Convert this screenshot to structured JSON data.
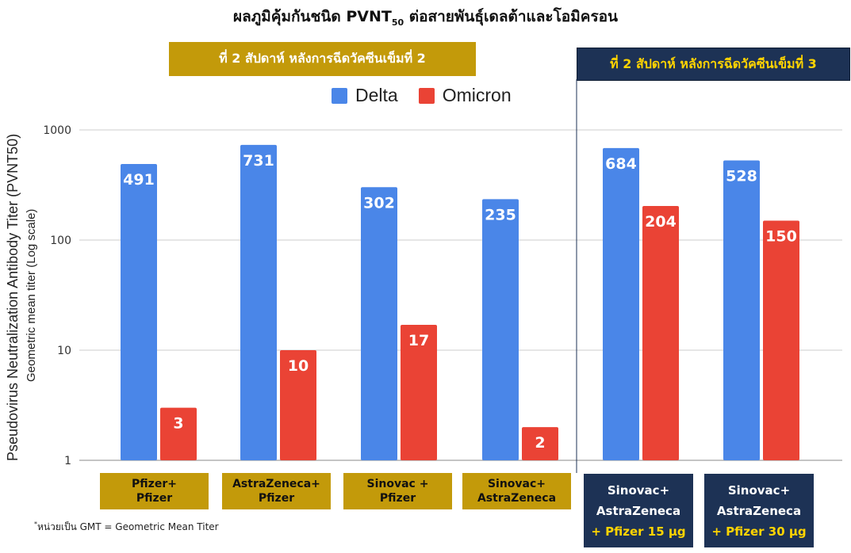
{
  "title": {
    "main": "ผลภูมิคุ้มกันชนิด PVNT",
    "subscript": "50",
    "rest": " ต่อสายพันธุ์เดลต้าและโอมิครอน"
  },
  "banners": {
    "dose2": "ที่ 2 สัปดาห์ หลังการฉีดวัคซีนเข็มที่ 2",
    "dose3": "ที่ 2 สัปดาห์ หลังการฉีดวัคซีนเข็มที่ 3"
  },
  "ylabel_primary": "Pseudovirus Neutralization Antibody Titer (PVNT50)",
  "ylabel_secondary": "Geometric mean titer (Log scale)",
  "footnote": {
    "mark": "*",
    "text": "หน่วยเป็น GMT = Geometric Mean Titer"
  },
  "category_labels": [
    {
      "line1": "Pfizer+",
      "line2": "Pfizer"
    },
    {
      "line1": "AstraZeneca+",
      "line2": "Pfizer"
    },
    {
      "line1": "Sinovac +",
      "line2": "Pfizer"
    },
    {
      "line1": "Sinovac+",
      "line2": "AstraZeneca"
    },
    {
      "line1": "Sinovac+",
      "line2": "AstraZeneca",
      "line3": "+ Pfizer 15 µg"
    },
    {
      "line1": "Sinovac+",
      "line2": "AstraZeneca",
      "line3": "+ Pfizer 30 µg"
    }
  ],
  "chart_data": {
    "type": "bar",
    "title": "ผลภูมิคุ้มกันชนิด PVNT50 ต่อสายพันธุ์เดลต้าและโอมิครอน",
    "categories": [
      "Pfizer+Pfizer",
      "AstraZeneca+Pfizer",
      "Sinovac + Pfizer",
      "Sinovac+AstraZeneca",
      "Sinovac+AstraZeneca + Pfizer 15 µg",
      "Sinovac+AstraZeneca + Pfizer 30 µg"
    ],
    "series": [
      {
        "name": "Delta",
        "values": [
          491,
          731,
          302,
          235,
          684,
          528
        ],
        "color": "#4a86e8"
      },
      {
        "name": "Omicron",
        "values": [
          3,
          10,
          17,
          2,
          204,
          150
        ],
        "color": "#ea4335"
      }
    ],
    "ylabel": "Pseudovirus Neutralization Antibody Titer (PVNT50)",
    "yscale": "log",
    "ylim": [
      1,
      1000
    ],
    "yticks": [
      1,
      10,
      100,
      1000
    ],
    "ytick_labels": [
      "1",
      "10",
      "100",
      "1000"
    ],
    "grid": true,
    "legend": "top-center"
  }
}
